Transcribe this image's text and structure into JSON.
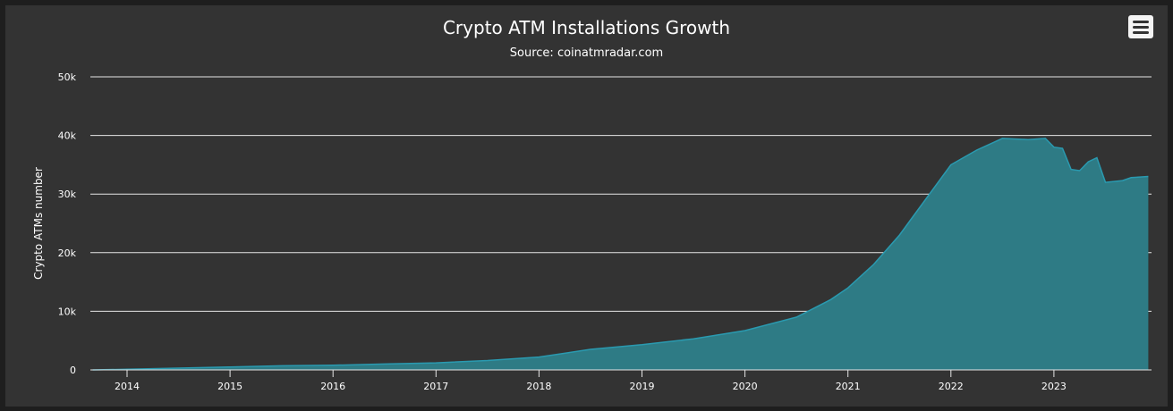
{
  "chart_data": {
    "type": "area",
    "title": "Crypto ATM Installations Growth",
    "subtitle": "Source: coinatmradar.com",
    "ylabel": "Crypto ATMs number",
    "xlabel": "",
    "ylim": [
      0,
      50000
    ],
    "y_ticks": [
      0,
      10000,
      20000,
      30000,
      40000,
      50000
    ],
    "y_tick_labels": [
      "0",
      "10k",
      "20k",
      "30k",
      "40k",
      "50k"
    ],
    "x_ticks": [
      "2014",
      "2015",
      "2016",
      "2017",
      "2018",
      "2019",
      "2020",
      "2021",
      "2022",
      "2023"
    ],
    "grid": true,
    "legend": false,
    "series": [
      {
        "color": "#2e7b85",
        "points": [
          [
            "2013-09",
            0
          ],
          [
            "2014-01",
            100
          ],
          [
            "2014-07",
            300
          ],
          [
            "2015-01",
            500
          ],
          [
            "2015-07",
            700
          ],
          [
            "2016-01",
            800
          ],
          [
            "2016-07",
            1000
          ],
          [
            "2017-01",
            1200
          ],
          [
            "2017-07",
            1600
          ],
          [
            "2018-01",
            2200
          ],
          [
            "2018-07",
            3500
          ],
          [
            "2019-01",
            4300
          ],
          [
            "2019-07",
            5300
          ],
          [
            "2020-01",
            6700
          ],
          [
            "2020-07",
            9000
          ],
          [
            "2020-11",
            12000
          ],
          [
            "2021-01",
            14000
          ],
          [
            "2021-04",
            18000
          ],
          [
            "2021-07",
            23000
          ],
          [
            "2021-10",
            29000
          ],
          [
            "2022-01",
            35000
          ],
          [
            "2022-04",
            37500
          ],
          [
            "2022-07",
            39500
          ],
          [
            "2022-10",
            39300
          ],
          [
            "2022-12",
            39500
          ],
          [
            "2023-01",
            38000
          ],
          [
            "2023-02",
            37800
          ],
          [
            "2023-03",
            34200
          ],
          [
            "2023-04",
            34000
          ],
          [
            "2023-05",
            35500
          ],
          [
            "2023-06",
            36200
          ],
          [
            "2023-07",
            32000
          ],
          [
            "2023-09",
            32300
          ],
          [
            "2023-10",
            32800
          ],
          [
            "2023-12",
            33000
          ]
        ]
      }
    ]
  },
  "menu": {
    "icon": "hamburger-menu-icon",
    "color": "#f4f4f4"
  },
  "colors": {
    "background": "#333333",
    "grid": "#e6e6e6",
    "area": "#2e7b85",
    "line": "#2a9ab0"
  }
}
